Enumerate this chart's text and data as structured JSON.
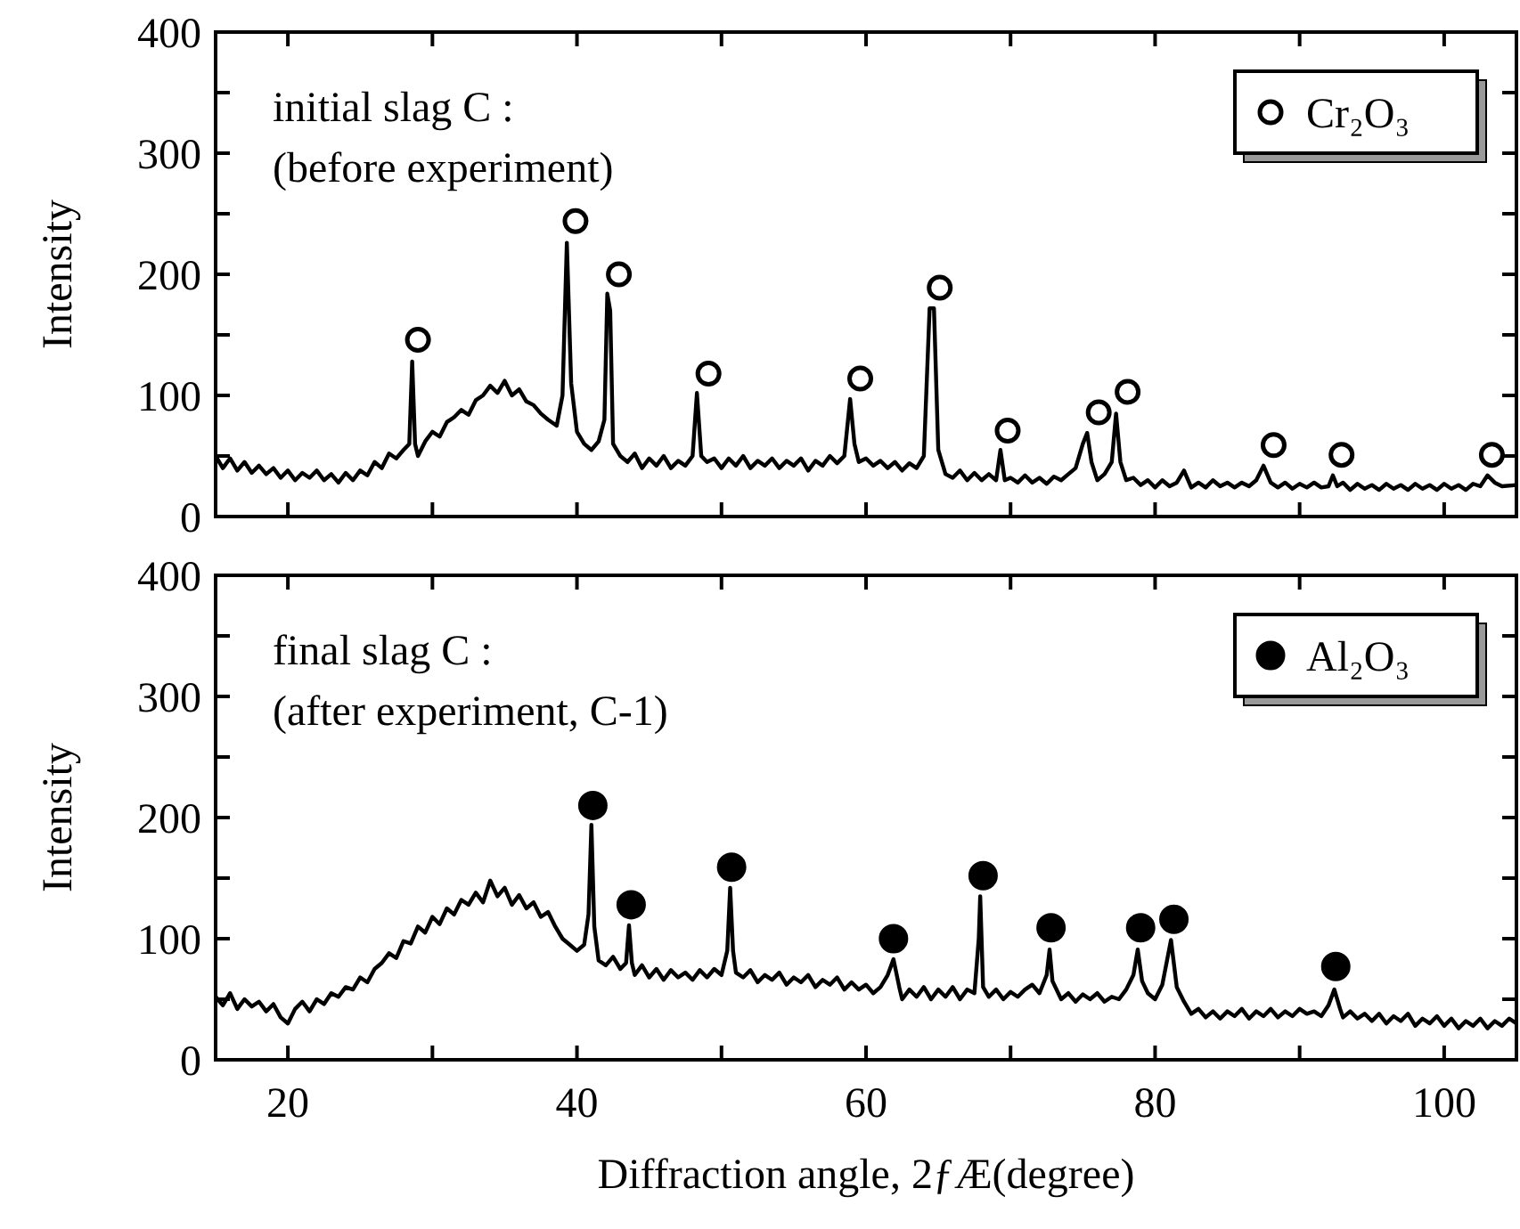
{
  "chart_data": [
    {
      "type": "line",
      "ylabel": "Intensity",
      "annotations": [
        "initial slag C :",
        "(before experiment)"
      ],
      "xlim": [
        15,
        105
      ],
      "xticks": [
        20,
        {
          "value": 30,
          "label": null
        },
        40,
        {
          "value": 50,
          "label": null
        },
        60,
        {
          "value": 70,
          "label": null
        },
        80,
        {
          "value": 90,
          "label": null
        },
        100
      ],
      "ylim": [
        0,
        400
      ],
      "yticks": [
        0,
        {
          "value": 50,
          "label": null
        },
        100,
        {
          "value": 150,
          "label": null
        },
        200,
        {
          "value": 250,
          "label": null
        },
        300,
        {
          "value": 350,
          "label": null
        },
        400
      ],
      "tick_labels": "y",
      "grid": false,
      "legend": "top right",
      "series": [
        {
          "type": "line",
          "color": "#000000",
          "x": [
            15,
            15.5,
            16,
            16.5,
            17,
            17.5,
            18,
            18.5,
            19,
            19.5,
            20,
            20.5,
            21,
            21.5,
            22,
            22.5,
            23,
            23.5,
            24,
            24.5,
            25,
            25.5,
            26,
            26.5,
            27,
            27.5,
            28,
            28.4,
            28.6,
            28.8,
            29,
            29.5,
            30,
            30.5,
            31,
            31.5,
            32,
            32.5,
            33,
            33.5,
            34,
            34.5,
            35,
            35.5,
            36,
            36.5,
            37,
            37.5,
            38,
            38.6,
            39,
            39.3,
            39.6,
            40,
            40.5,
            41,
            41.5,
            41.9,
            42.1,
            42.3,
            42.5,
            43,
            43.5,
            44,
            44.5,
            45,
            45.5,
            46,
            46.5,
            47,
            47.5,
            48,
            48.3,
            48.6,
            49,
            49.5,
            50,
            50.5,
            51,
            51.5,
            52,
            52.5,
            53,
            53.5,
            54,
            54.5,
            55,
            55.5,
            56,
            56.5,
            57,
            57.5,
            58,
            58.5,
            58.9,
            59.2,
            59.5,
            60,
            60.5,
            61,
            61.5,
            62,
            62.5,
            63,
            63.5,
            64,
            64.4,
            64.7,
            65,
            65.5,
            66,
            66.5,
            67,
            67.5,
            68,
            68.5,
            69,
            69.3,
            69.6,
            70,
            70.5,
            71,
            71.5,
            72,
            72.5,
            73,
            73.5,
            74,
            74.5,
            75,
            75.3,
            75.6,
            76,
            76.5,
            77,
            77.3,
            77.6,
            78,
            78.5,
            79,
            79.5,
            80,
            80.5,
            81,
            81.5,
            82,
            82.5,
            83,
            83.5,
            84,
            84.5,
            85,
            85.5,
            86,
            86.5,
            87,
            87.5,
            88,
            88.5,
            89,
            89.5,
            90,
            90.5,
            91,
            91.5,
            92,
            92.3,
            92.6,
            93,
            93.5,
            94,
            94.5,
            95,
            95.5,
            96,
            96.5,
            97,
            97.5,
            98,
            98.5,
            99,
            99.5,
            100,
            100.5,
            101,
            101.5,
            102,
            102.5,
            103,
            103.5,
            104,
            105
          ],
          "values": [
            50,
            40,
            48,
            38,
            45,
            36,
            42,
            35,
            40,
            32,
            38,
            30,
            36,
            32,
            38,
            30,
            35,
            28,
            36,
            30,
            38,
            34,
            45,
            40,
            52,
            48,
            55,
            60,
            128,
            60,
            50,
            62,
            70,
            66,
            78,
            82,
            88,
            84,
            96,
            100,
            108,
            102,
            112,
            100,
            105,
            95,
            92,
            85,
            80,
            75,
            100,
            226,
            110,
            70,
            60,
            55,
            62,
            80,
            184,
            170,
            60,
            50,
            45,
            52,
            40,
            48,
            42,
            50,
            40,
            46,
            42,
            50,
            102,
            50,
            45,
            48,
            40,
            48,
            42,
            50,
            40,
            46,
            42,
            48,
            40,
            46,
            42,
            48,
            38,
            46,
            42,
            50,
            44,
            50,
            97,
            60,
            45,
            48,
            42,
            46,
            40,
            45,
            38,
            44,
            40,
            50,
            172,
            172,
            55,
            35,
            32,
            38,
            30,
            36,
            30,
            35,
            30,
            55,
            30,
            32,
            28,
            34,
            28,
            32,
            27,
            33,
            30,
            35,
            40,
            60,
            69,
            45,
            30,
            35,
            45,
            85,
            45,
            30,
            32,
            26,
            30,
            24,
            30,
            25,
            28,
            38,
            24,
            28,
            24,
            30,
            25,
            28,
            24,
            28,
            25,
            30,
            42,
            28,
            24,
            28,
            23,
            27,
            24,
            28,
            24,
            25,
            34,
            25,
            28,
            22,
            27,
            23,
            26,
            22,
            27,
            23,
            26,
            22,
            27,
            23,
            26,
            22,
            27,
            23,
            26,
            22,
            27,
            25,
            34,
            28,
            25,
            26
          ]
        },
        {
          "type": "scatter",
          "name": "Cr₂O₃",
          "color": "#000000",
          "marker": "circle",
          "x": [
            29.0,
            39.9,
            42.9,
            49.1,
            59.6,
            65.1,
            69.8,
            76.1,
            78.1,
            88.2,
            92.9,
            103.3
          ],
          "values": [
            146,
            244,
            200,
            118,
            114,
            189,
            71,
            86,
            103,
            59,
            51,
            51
          ]
        }
      ]
    },
    {
      "type": "line",
      "xlabel": "Diffraction angle, 2ƒÆ(degree)",
      "ylabel": "Intensity",
      "annotations": [
        "final slag C :",
        "(after experiment, C-1)"
      ],
      "xlim": [
        15,
        105
      ],
      "xticks": [
        20,
        {
          "value": 30,
          "label": null
        },
        40,
        {
          "value": 50,
          "label": null
        },
        60,
        {
          "value": 70,
          "label": null
        },
        80,
        {
          "value": 90,
          "label": null
        },
        100
      ],
      "ylim": [
        0,
        400
      ],
      "yticks": [
        0,
        {
          "value": 50,
          "label": null
        },
        100,
        {
          "value": 150,
          "label": null
        },
        200,
        {
          "value": 250,
          "label": null
        },
        300,
        {
          "value": 350,
          "label": null
        },
        400
      ],
      "grid": false,
      "legend": "top right",
      "series": [
        {
          "type": "line",
          "color": "#000000",
          "x": [
            15,
            15.5,
            16,
            16.5,
            17,
            17.5,
            18,
            18.5,
            19,
            19.5,
            20,
            20.5,
            21,
            21.5,
            22,
            22.5,
            23,
            23.5,
            24,
            24.5,
            25,
            25.5,
            26,
            26.5,
            27,
            27.5,
            28,
            28.5,
            29,
            29.5,
            30,
            30.5,
            31,
            31.5,
            32,
            32.5,
            33,
            33.5,
            34,
            34.5,
            35,
            35.5,
            36,
            36.5,
            37,
            37.5,
            38,
            38.5,
            39,
            39.5,
            40,
            40.5,
            40.8,
            41,
            41.2,
            41.5,
            42,
            42.5,
            43,
            43.4,
            43.6,
            43.8,
            44,
            44.5,
            45,
            45.5,
            46,
            46.5,
            47,
            47.5,
            48,
            48.5,
            49,
            49.5,
            50,
            50.4,
            50.6,
            50.8,
            51,
            51.5,
            52,
            52.5,
            53,
            53.5,
            54,
            54.5,
            55,
            55.5,
            56,
            56.5,
            57,
            57.5,
            58,
            58.5,
            59,
            59.5,
            60,
            60.5,
            61,
            61.5,
            61.9,
            62.3,
            62.5,
            63,
            63.5,
            64,
            64.5,
            65,
            65.5,
            66,
            66.5,
            67,
            67.5,
            67.8,
            67.9,
            68.1,
            68.5,
            69,
            69.5,
            70,
            70.5,
            71,
            71.5,
            72,
            72.5,
            72.7,
            72.9,
            73.5,
            74,
            74.5,
            75,
            75.5,
            76,
            76.5,
            77,
            77.5,
            78,
            78.5,
            78.8,
            79.1,
            79.5,
            80,
            80.5,
            81.1,
            81.5,
            82,
            82.5,
            83,
            83.5,
            84,
            84.5,
            85,
            85.5,
            86,
            86.5,
            87,
            87.5,
            88,
            88.5,
            89,
            89.5,
            90,
            90.5,
            91,
            91.5,
            92,
            92.4,
            92.8,
            93,
            93.5,
            94,
            94.5,
            95,
            95.5,
            96,
            96.5,
            97,
            97.5,
            98,
            98.5,
            99,
            99.5,
            100,
            100.5,
            101,
            101.5,
            102,
            102.5,
            103,
            103.5,
            104,
            104.5,
            105
          ],
          "values": [
            52,
            45,
            55,
            42,
            50,
            44,
            48,
            40,
            46,
            35,
            30,
            42,
            48,
            40,
            50,
            46,
            55,
            52,
            60,
            58,
            68,
            64,
            75,
            80,
            88,
            84,
            98,
            96,
            110,
            105,
            118,
            112,
            125,
            120,
            132,
            128,
            138,
            130,
            148,
            135,
            142,
            128,
            136,
            125,
            130,
            118,
            122,
            110,
            100,
            95,
            90,
            95,
            120,
            194,
            110,
            82,
            78,
            85,
            75,
            80,
            111,
            80,
            70,
            78,
            68,
            75,
            66,
            74,
            68,
            72,
            66,
            74,
            68,
            75,
            70,
            90,
            142,
            90,
            72,
            68,
            74,
            64,
            70,
            66,
            72,
            62,
            68,
            64,
            70,
            60,
            66,
            62,
            68,
            58,
            64,
            58,
            62,
            55,
            60,
            70,
            83,
            60,
            50,
            58,
            52,
            60,
            50,
            58,
            52,
            60,
            50,
            58,
            55,
            100,
            135,
            60,
            52,
            58,
            50,
            56,
            52,
            58,
            62,
            55,
            70,
            91,
            65,
            50,
            55,
            48,
            54,
            50,
            55,
            48,
            52,
            50,
            58,
            70,
            91,
            65,
            55,
            50,
            62,
            99,
            60,
            48,
            38,
            42,
            35,
            40,
            34,
            40,
            36,
            42,
            34,
            40,
            36,
            42,
            35,
            40,
            36,
            42,
            38,
            40,
            36,
            45,
            58,
            42,
            35,
            40,
            34,
            38,
            32,
            38,
            30,
            36,
            32,
            38,
            28,
            34,
            30,
            36,
            28,
            34,
            26,
            32,
            28,
            34,
            26,
            32,
            28,
            34,
            30
          ]
        },
        {
          "type": "scatter",
          "name": "Al₂O₃",
          "color": "#000000",
          "marker": "circle",
          "x": [
            41.1,
            43.75,
            50.7,
            61.9,
            68.1,
            72.8,
            79.0,
            81.3,
            92.5
          ],
          "values": [
            210,
            128,
            159,
            100,
            152,
            109,
            109,
            116,
            77
          ]
        }
      ]
    }
  ]
}
